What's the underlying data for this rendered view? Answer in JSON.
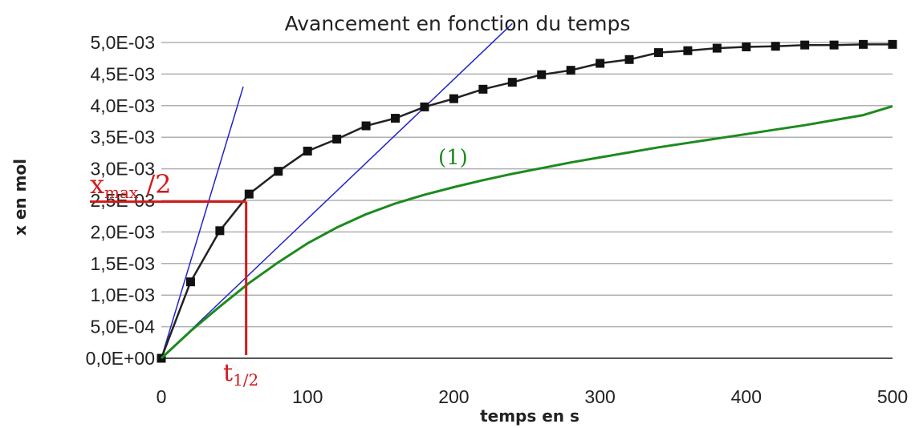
{
  "chart_data": {
    "type": "line",
    "title": "Avancement en fonction du temps",
    "xlabel": "temps en s",
    "ylabel": "x en mol",
    "xlim": [
      0,
      500
    ],
    "ylim": [
      0,
      0.005
    ],
    "x_ticks": [
      "0",
      "100",
      "200",
      "300",
      "400",
      "500"
    ],
    "y_ticks": [
      "0,0E+00",
      "5,0E-04",
      "1,0E-03",
      "1,5E-03",
      "2,0E-03",
      "2,5E-03",
      "3,0E-03",
      "3,5E-03",
      "4,0E-03",
      "4,5E-03",
      "5,0E-03"
    ],
    "grid": "horizontal",
    "series": [
      {
        "color": "#222222",
        "marker": "square",
        "x": [
          0,
          20,
          40,
          60,
          80,
          100,
          120,
          140,
          160,
          180,
          200,
          220,
          240,
          260,
          280,
          300,
          320,
          340,
          360,
          380,
          400,
          420,
          440,
          460,
          480,
          500
        ],
        "y": [
          0.0,
          0.00121,
          0.00202,
          0.0026,
          0.00296,
          0.00328,
          0.00347,
          0.00368,
          0.0038,
          0.00398,
          0.00411,
          0.00426,
          0.00437,
          0.00449,
          0.00456,
          0.00467,
          0.00473,
          0.00484,
          0.00487,
          0.00491,
          0.00493,
          0.00494,
          0.00496,
          0.00496,
          0.00497,
          0.00497
        ]
      },
      {
        "name": "(1)",
        "color": "#1d8a1d",
        "marker": "none",
        "x": [
          0,
          20,
          40,
          60,
          80,
          100,
          120,
          140,
          160,
          180,
          200,
          220,
          240,
          260,
          280,
          300,
          320,
          340,
          360,
          380,
          400,
          420,
          440,
          460,
          480,
          500
        ],
        "y": [
          0.0,
          0.00043,
          0.00082,
          0.00119,
          0.00152,
          0.00182,
          0.00207,
          0.00228,
          0.00245,
          0.00259,
          0.00271,
          0.00282,
          0.00292,
          0.00301,
          0.0031,
          0.00318,
          0.00326,
          0.00334,
          0.00341,
          0.00348,
          0.00355,
          0.00362,
          0.00369,
          0.00377,
          0.00385,
          0.00399
        ]
      }
    ],
    "tangent_lines": [
      {
        "color": "#2222cc",
        "x": [
          0,
          56
        ],
        "y": [
          0.0,
          0.0043
        ]
      },
      {
        "color": "#2222cc",
        "x": [
          0,
          240
        ],
        "y": [
          0.0,
          0.0053
        ]
      }
    ],
    "annotations": {
      "xmax_half": {
        "main": "x",
        "sub": "max",
        "rest": " /2",
        "x": 58,
        "y": 0.00248,
        "color": "#d11a1a"
      },
      "t_half": {
        "main": "t",
        "sub": "1/2",
        "color": "#d11a1a"
      },
      "curve_label": {
        "text": "(1)",
        "color": "#1d8a1d"
      }
    }
  }
}
